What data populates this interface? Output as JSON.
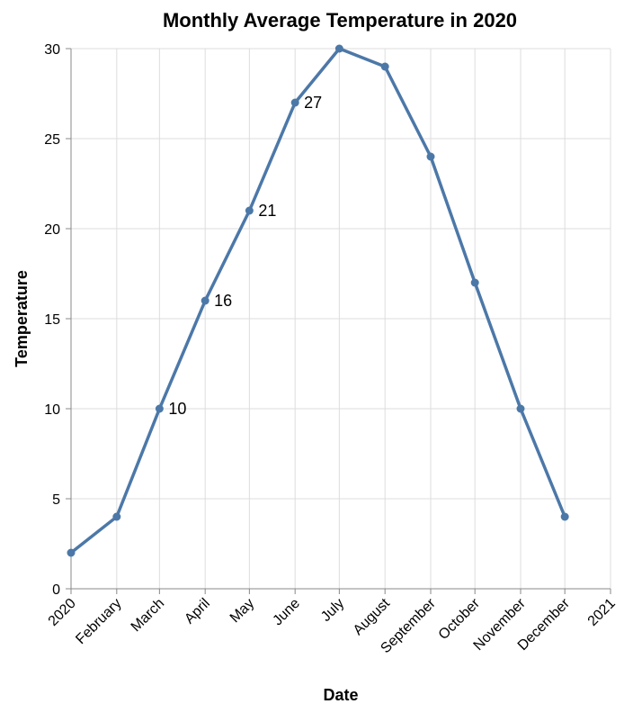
{
  "chart_data": {
    "type": "line",
    "title": "Monthly Average Temperature in 2020",
    "xlabel": "Date",
    "ylabel": "Temperature",
    "x_ticks": [
      "2020",
      "February",
      "March",
      "April",
      "May",
      "June",
      "July",
      "August",
      "September",
      "October",
      "November",
      "December",
      "2021"
    ],
    "y_ticks": [
      0,
      5,
      10,
      15,
      20,
      25,
      30
    ],
    "ylim": [
      0,
      30
    ],
    "grid": true,
    "line_color": "#4c78a8",
    "series": [
      {
        "x": [
          "2020-01-01",
          "2020-02-01",
          "2020-03-01",
          "2020-04-01",
          "2020-05-01",
          "2020-06-01",
          "2020-07-01",
          "2020-08-01",
          "2020-09-01",
          "2020-10-01",
          "2020-11-01",
          "2020-12-01"
        ],
        "values": [
          2,
          4,
          10,
          16,
          21,
          27,
          30,
          29,
          24,
          17,
          10,
          4
        ]
      }
    ],
    "data_labels": [
      {
        "x": "2020-03-01",
        "text": "10"
      },
      {
        "x": "2020-04-01",
        "text": "16"
      },
      {
        "x": "2020-05-01",
        "text": "21"
      },
      {
        "x": "2020-06-01",
        "text": "27"
      }
    ]
  }
}
